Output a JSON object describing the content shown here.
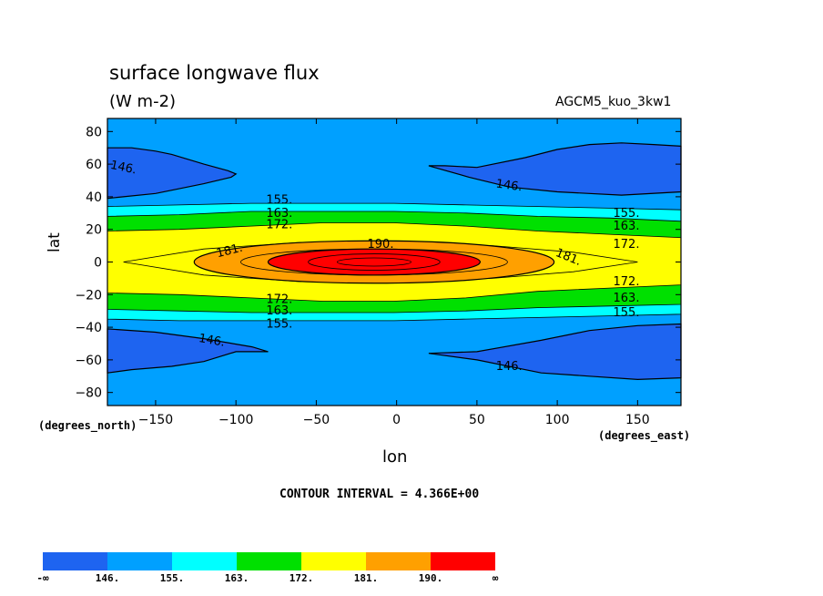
{
  "header": {
    "title": "surface longwave flux",
    "units": "(W m-2)",
    "model": "AGCM5_kuo_3kw1"
  },
  "axes": {
    "x_label": "lon",
    "y_label": "lat",
    "x_note": "(degrees_east)",
    "y_note": "(degrees_north)"
  },
  "footer": {
    "contour_interval": "CONTOUR INTERVAL = 4.366E+00"
  },
  "chart_data": {
    "type": "contour",
    "title": "surface longwave flux",
    "subtitle": "(W m-2)",
    "xlabel": "lon",
    "ylabel": "lat",
    "xlim": [
      -180,
      177
    ],
    "ylim": [
      -88,
      88
    ],
    "x_ticks": [
      -150,
      -100,
      -50,
      0,
      50,
      100,
      150
    ],
    "x_tick_labels": [
      "−150",
      "−100",
      "−50",
      "0",
      "50",
      "100",
      "150"
    ],
    "y_ticks": [
      80,
      60,
      40,
      20,
      0,
      -20,
      -40,
      -60,
      -80
    ],
    "y_tick_labels": [
      "80",
      "60",
      "40",
      "20",
      "0",
      "−20",
      "−40",
      "−60",
      "−80"
    ],
    "contour_interval": 4.366,
    "levels": [
      146,
      155,
      163,
      172,
      181,
      190
    ],
    "fill_colors": [
      "#1e64f0",
      "#00a0ff",
      "#00ffff",
      "#00e000",
      "#ffff00",
      "#ffa000",
      "#ff0000"
    ],
    "colorbar_labels": [
      "-∞",
      "146.",
      "155.",
      "163.",
      "172.",
      "181.",
      "190.",
      "∞"
    ],
    "contour_labels": [
      {
        "text": "146.",
        "lon": -170,
        "lat": 58,
        "angle": 12
      },
      {
        "text": "146.",
        "lon": 70,
        "lat": 47,
        "angle": 8
      },
      {
        "text": "146.",
        "lon": -115,
        "lat": -48,
        "angle": 10
      },
      {
        "text": "146.",
        "lon": 70,
        "lat": -64,
        "angle": 0
      },
      {
        "text": "155.",
        "lon": -73,
        "lat": 38,
        "angle": 0
      },
      {
        "text": "155.",
        "lon": 143,
        "lat": 30,
        "angle": 0
      },
      {
        "text": "155.",
        "lon": -73,
        "lat": -38,
        "angle": 0
      },
      {
        "text": "155.",
        "lon": 143,
        "lat": -31,
        "angle": 0
      },
      {
        "text": "163.",
        "lon": -73,
        "lat": 30,
        "angle": 0
      },
      {
        "text": "163.",
        "lon": 143,
        "lat": 22,
        "angle": 0
      },
      {
        "text": "163.",
        "lon": -73,
        "lat": -30,
        "angle": 0
      },
      {
        "text": "163.",
        "lon": 143,
        "lat": -22,
        "angle": 0
      },
      {
        "text": "172.",
        "lon": -73,
        "lat": 23,
        "angle": 0
      },
      {
        "text": "172.",
        "lon": 143,
        "lat": 11,
        "angle": 0
      },
      {
        "text": "172.",
        "lon": -73,
        "lat": -23,
        "angle": 0
      },
      {
        "text": "172.",
        "lon": 143,
        "lat": -12,
        "angle": 0
      },
      {
        "text": "181.",
        "lon": -104,
        "lat": 7,
        "angle": -14
      },
      {
        "text": "181.",
        "lon": 107,
        "lat": 3,
        "angle": 22
      },
      {
        "text": "190.",
        "lon": -10,
        "lat": 11,
        "angle": 0
      }
    ]
  }
}
